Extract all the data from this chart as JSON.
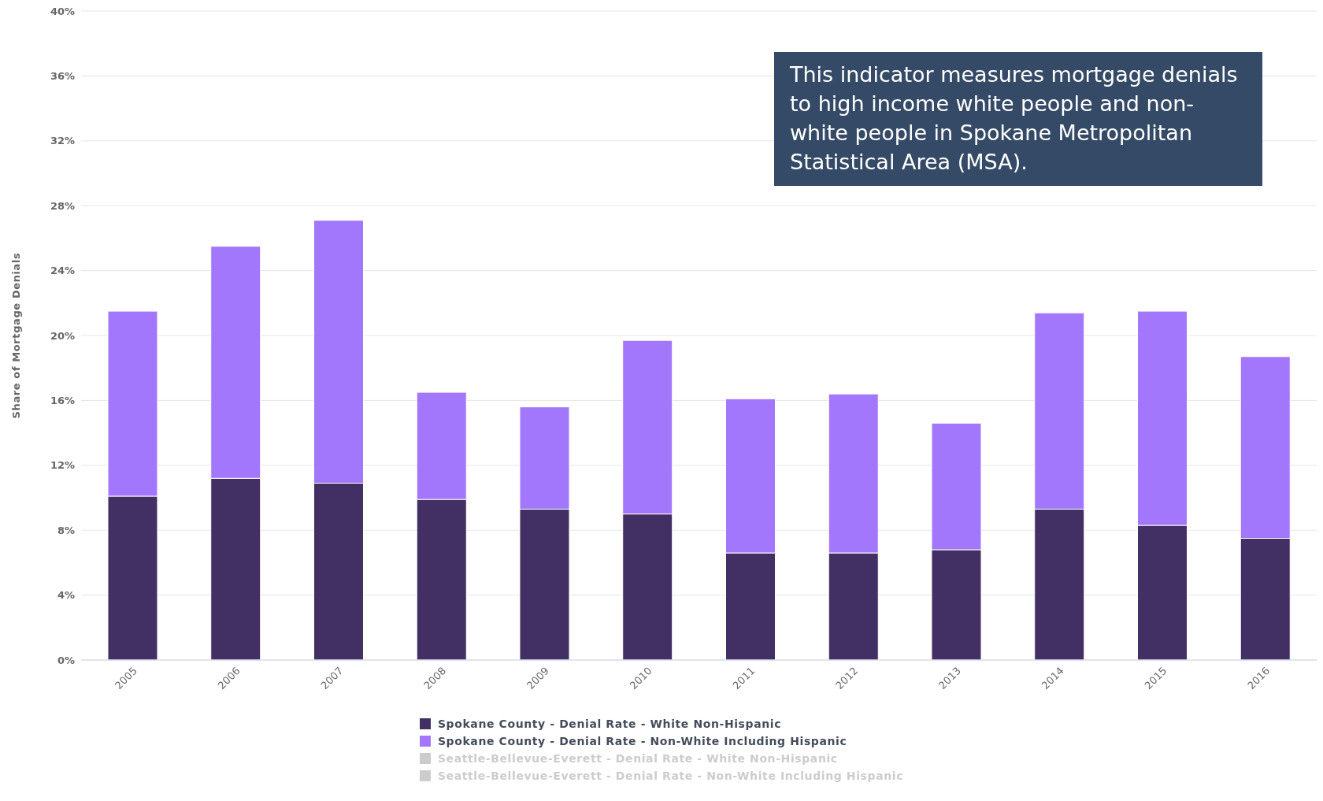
{
  "chart_data": {
    "type": "bar",
    "stacked": true,
    "ylabel": "Share of Mortgage Denials",
    "categories": [
      "2005",
      "2006",
      "2007",
      "2008",
      "2009",
      "2010",
      "2011",
      "2012",
      "2013",
      "2014",
      "2015",
      "2016"
    ],
    "series": [
      {
        "name": "Spokane County - Denial Rate - White Non-Hispanic",
        "color": "#422f63",
        "values": [
          10.1,
          11.2,
          10.9,
          9.9,
          9.3,
          9.0,
          6.6,
          6.6,
          6.8,
          9.3,
          8.3,
          7.5
        ]
      },
      {
        "name": "Spokane County - Denial Rate - Non-White Including Hispanic",
        "color": "#a277fc",
        "values": [
          11.4,
          14.3,
          16.2,
          6.6,
          6.3,
          10.7,
          9.5,
          9.8,
          7.8,
          12.1,
          13.2,
          11.2
        ]
      },
      {
        "name": "Seattle-Bellevue-Everett - Denial Rate - White Non-Hispanic",
        "color": "#cccccc",
        "values": [
          null,
          null,
          null,
          null,
          null,
          null,
          null,
          null,
          null,
          null,
          null,
          null
        ]
      },
      {
        "name": "Seattle-Bellevue-Everett - Denial Rate - Non-White Including Hispanic",
        "color": "#cccccc",
        "values": [
          null,
          null,
          null,
          null,
          null,
          null,
          null,
          null,
          null,
          null,
          null,
          null
        ]
      }
    ],
    "ylim": [
      0,
      40
    ],
    "yticks": [
      {
        "value": 0,
        "label": "0%"
      },
      {
        "value": 4,
        "label": "4%"
      },
      {
        "value": 8,
        "label": "8%"
      },
      {
        "value": 12,
        "label": "12%"
      },
      {
        "value": 16,
        "label": "16%"
      },
      {
        "value": 20,
        "label": "20%"
      },
      {
        "value": 24,
        "label": "24%"
      },
      {
        "value": 28,
        "label": "28%"
      },
      {
        "value": 32,
        "label": "32%"
      },
      {
        "value": 36,
        "label": "36%"
      },
      {
        "value": 40,
        "label": "40%"
      }
    ],
    "grid": "y",
    "legend": "bottom",
    "annotations": [
      "This indicator measures mortgage denials to high income white people and non-white people in Spokane Metropolitan Statistical Area (MSA)."
    ]
  }
}
